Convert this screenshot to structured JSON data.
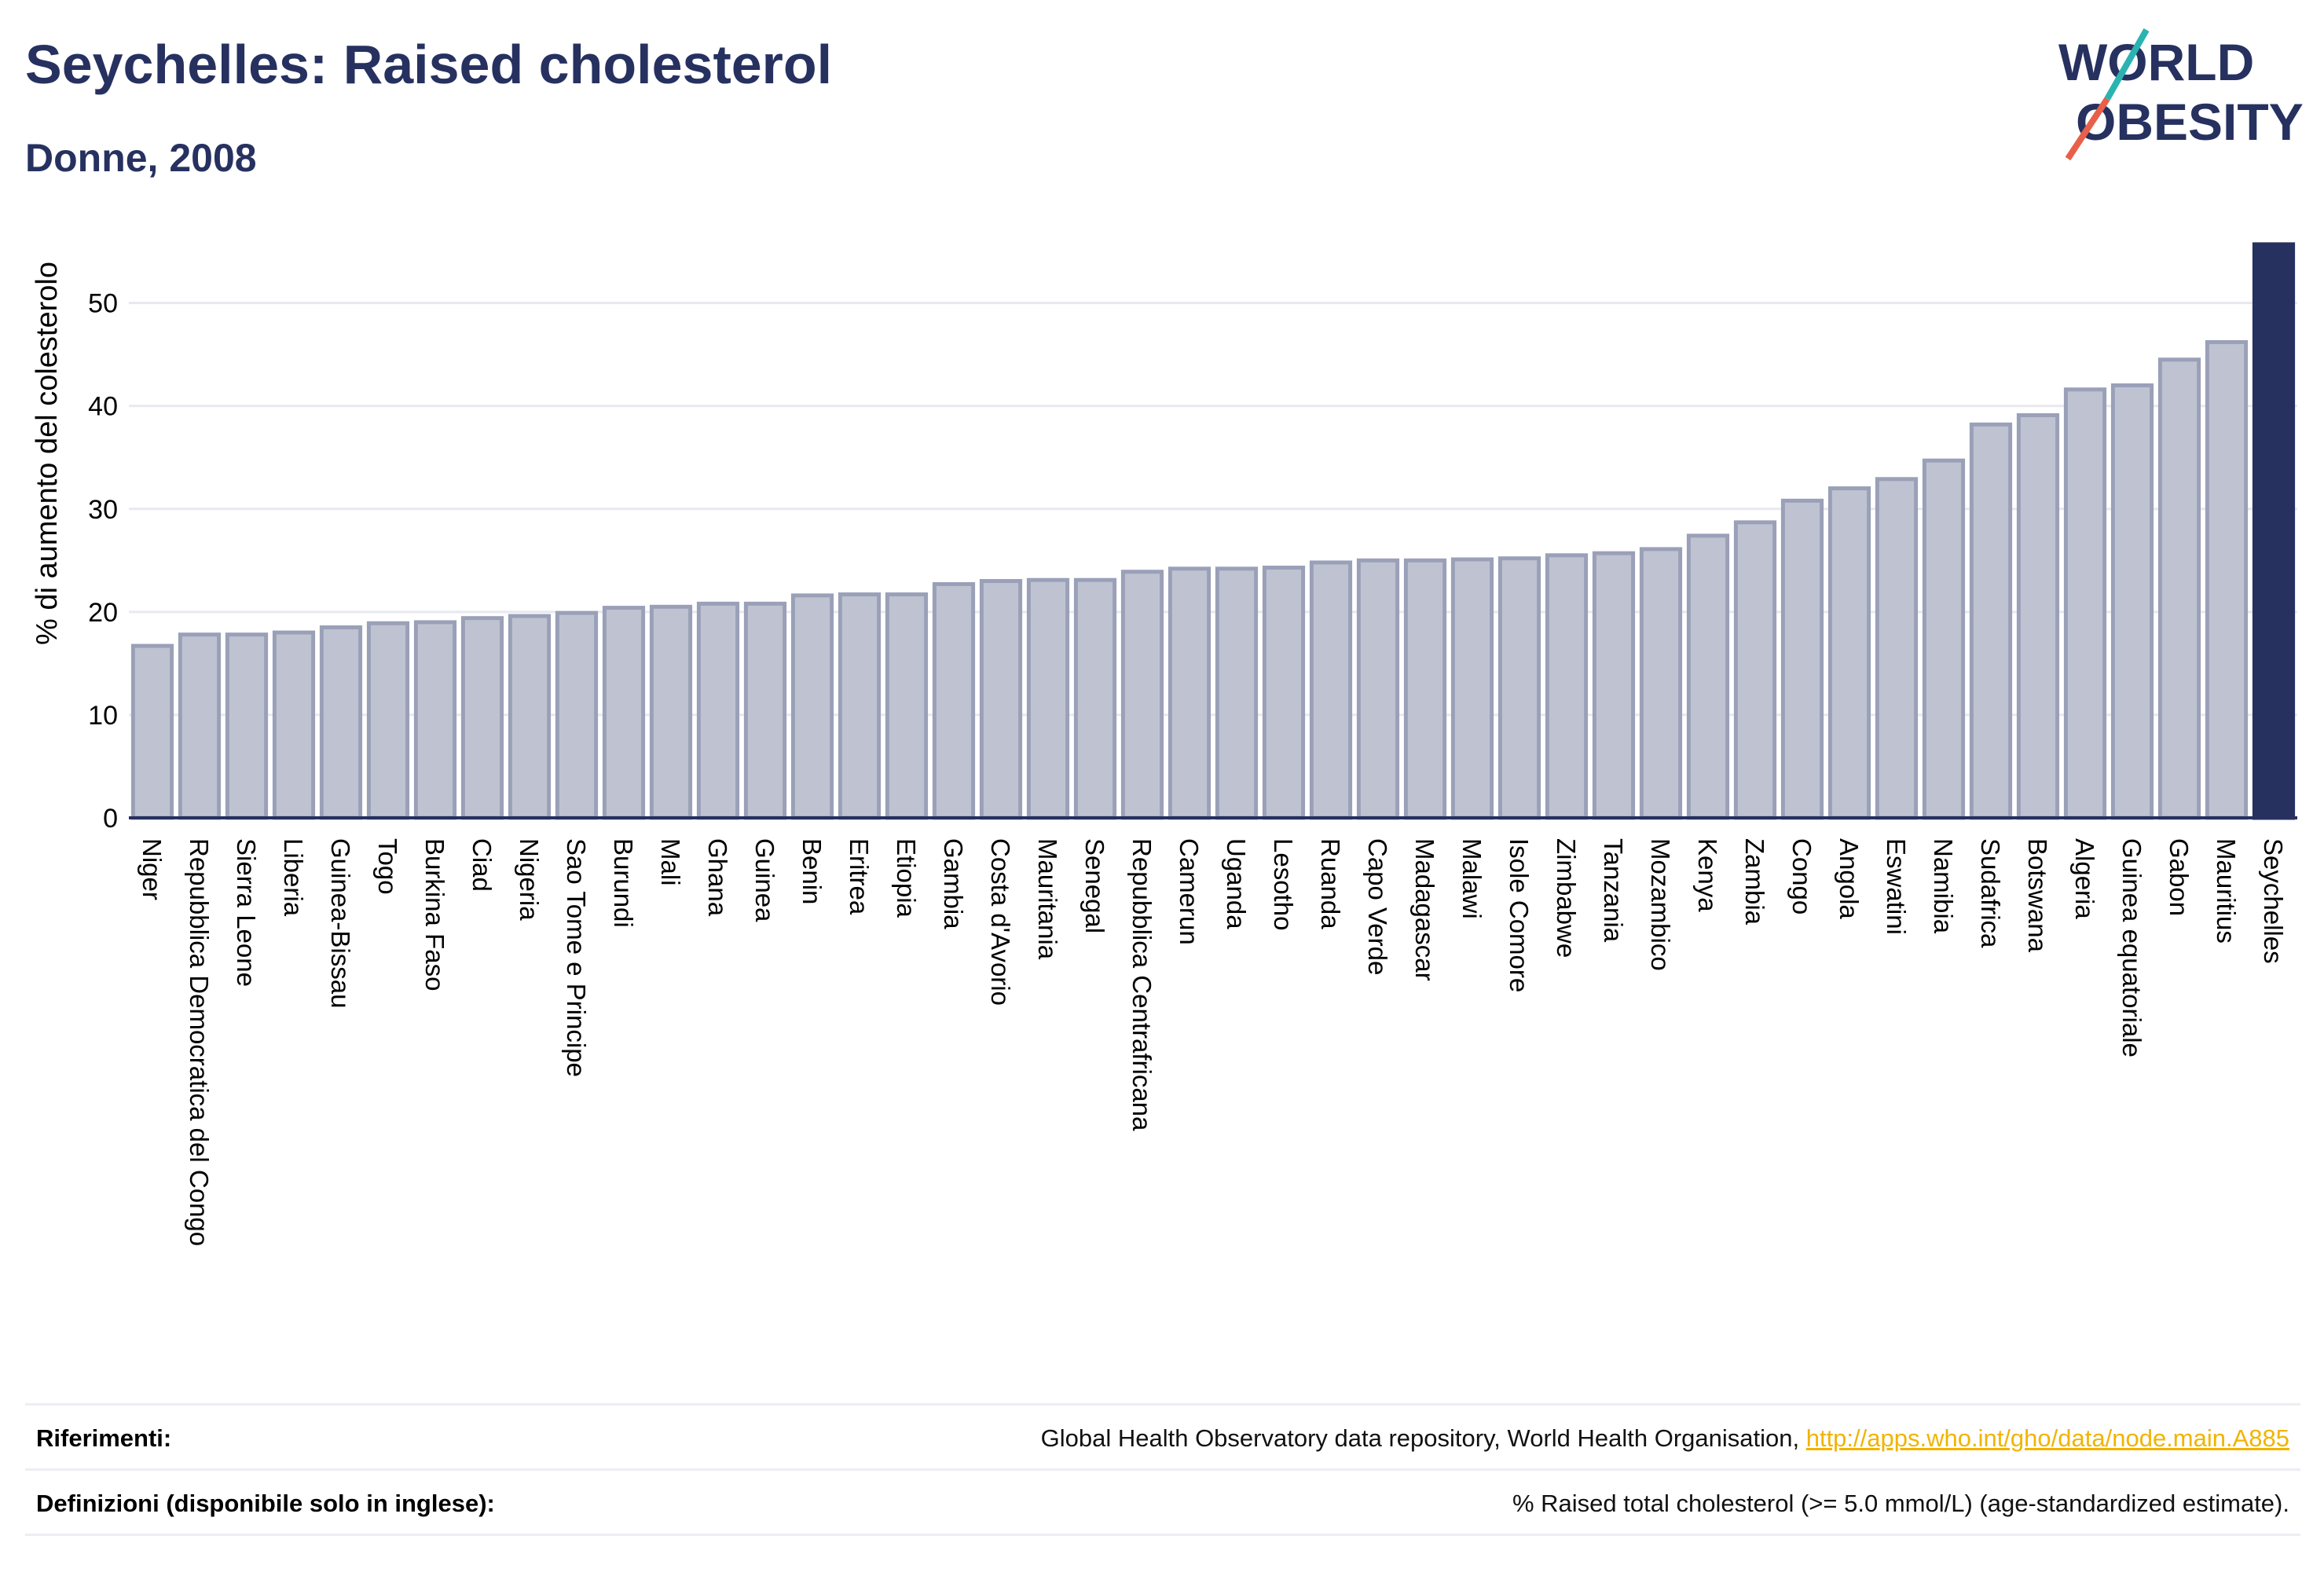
{
  "header": {
    "title": "Seychelles: Raised cholesterol",
    "subtitle": "Donne, 2008"
  },
  "logo": {
    "line1": "WORLD",
    "line2": "OBESITY"
  },
  "chart_data": {
    "type": "bar",
    "title": "Seychelles: Raised cholesterol",
    "subtitle": "Donne, 2008",
    "ylabel": "% di aumento del colesterolo",
    "xlabel": "",
    "ylim": [
      0,
      56
    ],
    "yticks": [
      0,
      10,
      20,
      30,
      40,
      50
    ],
    "grid": true,
    "highlight": "Seychelles",
    "colors": {
      "bar": "#bfc3d1",
      "bar_border": "#9aa0b8",
      "highlight": "#263160"
    },
    "categories": [
      "Niger",
      "Repubblica Democratica del Congo",
      "Sierra Leone",
      "Liberia",
      "Guinea-Bissau",
      "Togo",
      "Burkina Faso",
      "Ciad",
      "Nigeria",
      "Sao Tome e Principe",
      "Burundi",
      "Mali",
      "Ghana",
      "Guinea",
      "Benin",
      "Eritrea",
      "Etiopia",
      "Gambia",
      "Costa d'Avorio",
      "Mauritania",
      "Senegal",
      "Repubblica Centrafricana",
      "Camerun",
      "Uganda",
      "Lesotho",
      "Ruanda",
      "Capo Verde",
      "Madagascar",
      "Malawi",
      "Isole Comore",
      "Zimbabwe",
      "Tanzania",
      "Mozambico",
      "Kenya",
      "Zambia",
      "Congo",
      "Angola",
      "Eswatini",
      "Namibia",
      "Sudafrica",
      "Botswana",
      "Algeria",
      "Guinea equatoriale",
      "Gabon",
      "Mauritius",
      "Seychelles"
    ],
    "values": [
      16.7,
      17.8,
      17.8,
      18.0,
      18.5,
      18.9,
      19.0,
      19.4,
      19.6,
      19.9,
      20.4,
      20.5,
      20.8,
      20.8,
      21.6,
      21.7,
      21.7,
      22.7,
      23.0,
      23.1,
      23.1,
      23.9,
      24.2,
      24.2,
      24.3,
      24.8,
      25.0,
      25.0,
      25.1,
      25.2,
      25.5,
      25.7,
      26.1,
      27.4,
      28.7,
      30.8,
      32.0,
      32.9,
      34.7,
      38.2,
      39.1,
      41.6,
      42.0,
      44.5,
      46.2,
      55.7
    ]
  },
  "references": {
    "label": "Riferimenti:",
    "text": "Global Health Observatory data repository, World Health Organisation, ",
    "link": "http://apps.who.int/gho/data/node.main.A885"
  },
  "definitions": {
    "label": "Definizioni (disponibile solo in inglese):",
    "text": "% Raised total cholesterol (>= 5.0 mmol/L) (age-standardized estimate)."
  }
}
